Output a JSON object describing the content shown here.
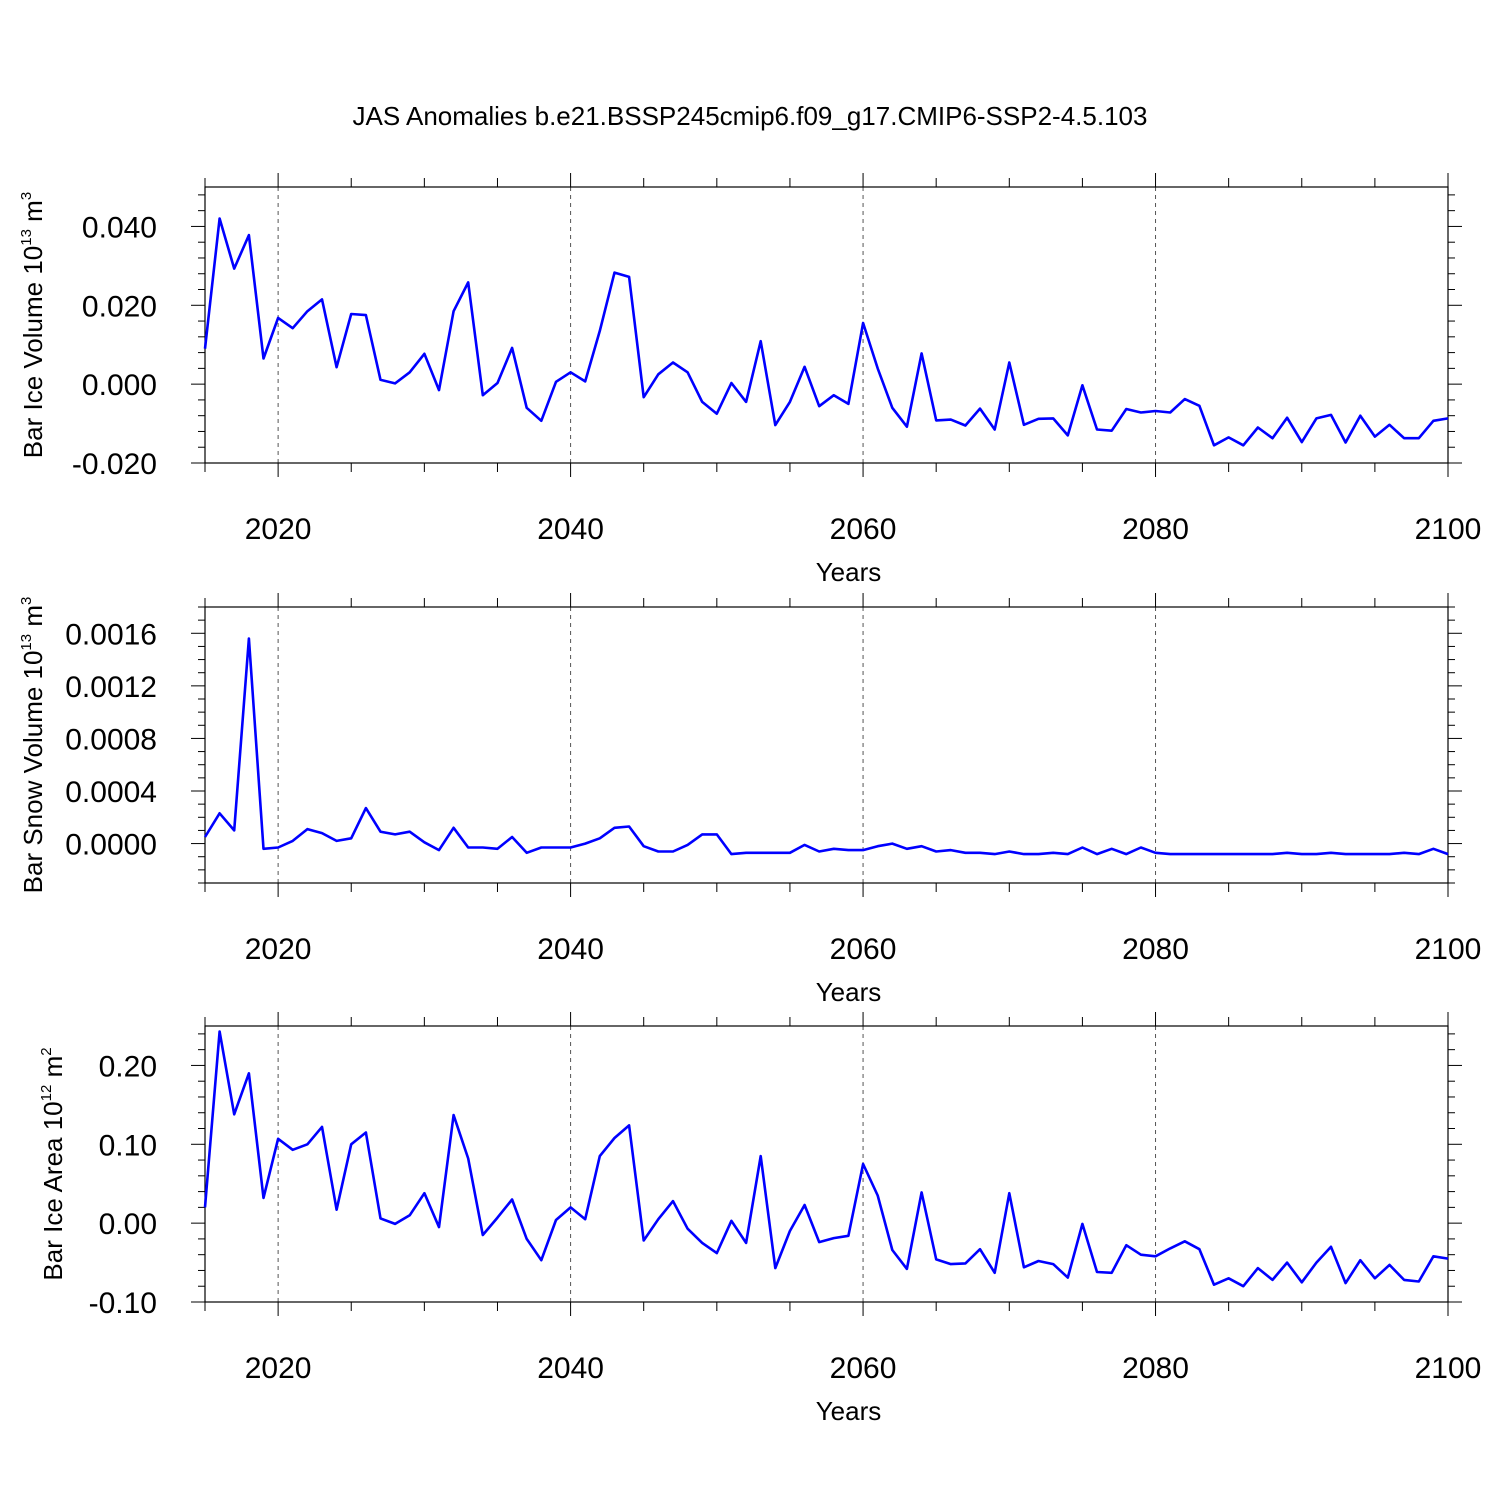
{
  "title": "JAS Anomalies b.e21.BSSP245cmip6.f09_g17.CMIP6-SSP2-4.5.103",
  "colors": {
    "line": "#0000ff",
    "axis": "#000000",
    "grid": "#555555"
  },
  "chart_data": [
    {
      "type": "line",
      "name": "ice-volume",
      "ylabel_main": "Bar Ice Volume 10",
      "ylabel_exp": "13",
      "ylabel_unit": " m",
      "ylabel_unit_exp": "3",
      "xlabel": "Years",
      "xlim": [
        2015,
        2100
      ],
      "ylim": [
        -0.02,
        0.05
      ],
      "xticks": [
        2020,
        2040,
        2060,
        2080,
        2100
      ],
      "yticks": [
        -0.02,
        0.0,
        0.02,
        0.04
      ],
      "ytick_labels": [
        "-0.020",
        "0.000",
        "0.020",
        "0.040"
      ],
      "y_minor_step": 0.004,
      "x_start": 2015,
      "values": [
        0.009,
        0.042,
        0.0293,
        0.0378,
        0.0065,
        0.0168,
        0.0142,
        0.0185,
        0.0215,
        0.0043,
        0.0178,
        0.0175,
        0.0011,
        0.0002,
        0.003,
        0.0077,
        -0.0015,
        0.0185,
        0.0258,
        -0.0028,
        0.0003,
        0.0092,
        -0.006,
        -0.0093,
        0.0006,
        0.003,
        0.0007,
        0.0135,
        0.0283,
        0.0272,
        -0.0033,
        0.0025,
        0.0055,
        0.003,
        -0.0045,
        -0.0075,
        0.0003,
        -0.0045,
        0.0109,
        -0.0104,
        -0.0045,
        0.0044,
        -0.0056,
        -0.0028,
        -0.005,
        0.0155,
        0.004,
        -0.006,
        -0.0108,
        0.0078,
        -0.0092,
        -0.009,
        -0.0105,
        -0.0062,
        -0.0115,
        0.0055,
        -0.0103,
        -0.0088,
        -0.0087,
        -0.013,
        -0.0003,
        -0.0115,
        -0.0118,
        -0.0063,
        -0.0072,
        -0.0068,
        -0.0072,
        -0.0038,
        -0.0055,
        -0.0155,
        -0.0135,
        -0.0155,
        -0.011,
        -0.0137,
        -0.0085,
        -0.0147,
        -0.0087,
        -0.0078,
        -0.0148,
        -0.008,
        -0.0133,
        -0.0103,
        -0.0137,
        -0.0137,
        -0.0093,
        -0.0087
      ]
    },
    {
      "type": "line",
      "name": "snow-volume",
      "ylabel_main": "Bar Snow Volume 10",
      "ylabel_exp": "13",
      "ylabel_unit": " m",
      "ylabel_unit_exp": "3",
      "xlabel": "Years",
      "xlim": [
        2015,
        2100
      ],
      "ylim": [
        -0.0003,
        0.0018
      ],
      "xticks": [
        2020,
        2040,
        2060,
        2080,
        2100
      ],
      "yticks": [
        0.0,
        0.0004,
        0.0008,
        0.0012,
        0.0016
      ],
      "ytick_labels": [
        "0.0000",
        "0.0004",
        "0.0008",
        "0.0012",
        "0.0016"
      ],
      "y_minor_step": 0.0001,
      "x_start": 2015,
      "values": [
        5e-05,
        0.00023,
        0.0001,
        0.00156,
        -4e-05,
        -3e-05,
        2e-05,
        0.00011,
        8e-05,
        2e-05,
        4e-05,
        0.00027,
        9e-05,
        7e-05,
        9e-05,
        1e-05,
        -5e-05,
        0.00012,
        -3e-05,
        -3e-05,
        -4e-05,
        5e-05,
        -7e-05,
        -3e-05,
        -3e-05,
        -3e-05,
        0.0,
        4e-05,
        0.00012,
        0.00013,
        -2e-05,
        -6e-05,
        -6e-05,
        -1e-05,
        7e-05,
        7e-05,
        -8e-05,
        -7e-05,
        -7e-05,
        -7e-05,
        -7e-05,
        -1e-05,
        -6e-05,
        -4e-05,
        -5e-05,
        -5e-05,
        -2e-05,
        0.0,
        -4e-05,
        -2e-05,
        -6e-05,
        -5e-05,
        -7e-05,
        -7e-05,
        -8e-05,
        -6e-05,
        -8e-05,
        -8e-05,
        -7e-05,
        -8e-05,
        -3e-05,
        -8e-05,
        -4e-05,
        -8e-05,
        -3e-05,
        -7e-05,
        -8e-05,
        -8e-05,
        -8e-05,
        -8e-05,
        -8e-05,
        -8e-05,
        -8e-05,
        -8e-05,
        -7e-05,
        -8e-05,
        -8e-05,
        -7e-05,
        -8e-05,
        -8e-05,
        -8e-05,
        -8e-05,
        -7e-05,
        -8e-05,
        -4e-05,
        -8e-05
      ]
    },
    {
      "type": "line",
      "name": "ice-area",
      "ylabel_main": "Bar Ice Area 10",
      "ylabel_exp": "12",
      "ylabel_unit": " m",
      "ylabel_unit_exp": "2",
      "xlabel": "Years",
      "xlim": [
        2015,
        2100
      ],
      "ylim": [
        -0.1,
        0.25
      ],
      "xticks": [
        2020,
        2040,
        2060,
        2080,
        2100
      ],
      "yticks": [
        -0.1,
        0.0,
        0.1,
        0.2
      ],
      "ytick_labels": [
        "-0.10",
        "0.00",
        "0.10",
        "0.20"
      ],
      "y_minor_step": 0.02,
      "x_start": 2015,
      "values": [
        0.02,
        0.243,
        0.138,
        0.19,
        0.032,
        0.107,
        0.093,
        0.1,
        0.122,
        0.017,
        0.1,
        0.115,
        0.006,
        -0.001,
        0.01,
        0.038,
        -0.005,
        0.137,
        0.082,
        -0.015,
        0.007,
        0.03,
        -0.02,
        -0.047,
        0.004,
        0.02,
        0.005,
        0.085,
        0.108,
        0.124,
        -0.022,
        0.005,
        0.028,
        -0.007,
        -0.025,
        -0.038,
        0.003,
        -0.025,
        0.085,
        -0.057,
        -0.01,
        0.023,
        -0.024,
        -0.019,
        -0.016,
        0.075,
        0.035,
        -0.034,
        -0.058,
        0.039,
        -0.046,
        -0.052,
        -0.051,
        -0.033,
        -0.063,
        0.038,
        -0.056,
        -0.048,
        -0.052,
        -0.069,
        -0.001,
        -0.062,
        -0.063,
        -0.028,
        -0.04,
        -0.042,
        -0.032,
        -0.023,
        -0.033,
        -0.078,
        -0.07,
        -0.08,
        -0.057,
        -0.072,
        -0.05,
        -0.075,
        -0.05,
        -0.03,
        -0.076,
        -0.047,
        -0.07,
        -0.053,
        -0.072,
        -0.074,
        -0.042,
        -0.045
      ]
    }
  ]
}
